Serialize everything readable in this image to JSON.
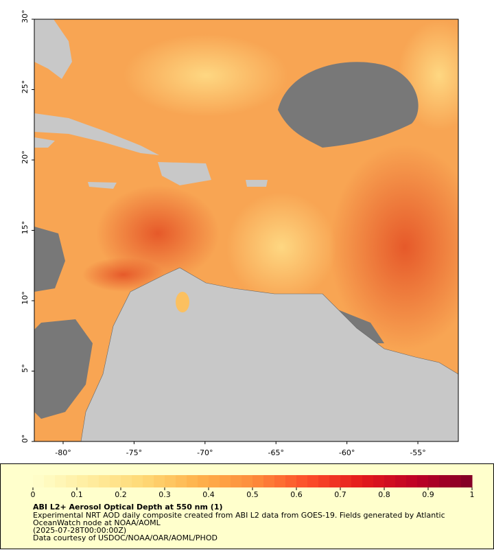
{
  "chart_data": {
    "type": "map",
    "xlim": [
      -82.03,
      -52.15
    ],
    "ylim": [
      0,
      30
    ],
    "xticks": [
      {
        "value": -80,
        "label": "-80°"
      },
      {
        "value": -75,
        "label": "-75°"
      },
      {
        "value": -70,
        "label": "-70°"
      },
      {
        "value": -65,
        "label": "-65°"
      },
      {
        "value": -60,
        "label": "-60°"
      },
      {
        "value": -55,
        "label": "-55°"
      }
    ],
    "yticks": [
      {
        "value": 0,
        "label": "0°"
      },
      {
        "value": 5,
        "label": "5°"
      },
      {
        "value": 10,
        "label": "10°"
      },
      {
        "value": 15,
        "label": "15°"
      },
      {
        "value": 20,
        "label": "20°"
      },
      {
        "value": 25,
        "label": "25°"
      },
      {
        "value": 30,
        "label": "30°"
      }
    ],
    "colorbar": {
      "range": [
        0,
        1
      ],
      "ticks": [
        0,
        0.1,
        0.2,
        0.3,
        0.4,
        0.5,
        0.6,
        0.7,
        0.8,
        0.9,
        1
      ],
      "colors": [
        "#ffffcc",
        "#ffeda0",
        "#fed976",
        "#feb24c",
        "#fd8d3c",
        "#fc4e2a",
        "#e31a1c",
        "#bd0026",
        "#800026"
      ]
    },
    "title": "ABI L2+ Aerosol Optical Depth at 550 nm (1)",
    "notes": [
      "Experimental NRT AOD daily composite created from ABI L2 data from GOES-19. Fields generated by Atlantic",
      "OceanWatch node at NOAA/AOML",
      "(2025-07-28T00:00:00Z)",
      "Data courtesy of USDOC/NOAA/OAR/AOML/PHOD"
    ]
  }
}
